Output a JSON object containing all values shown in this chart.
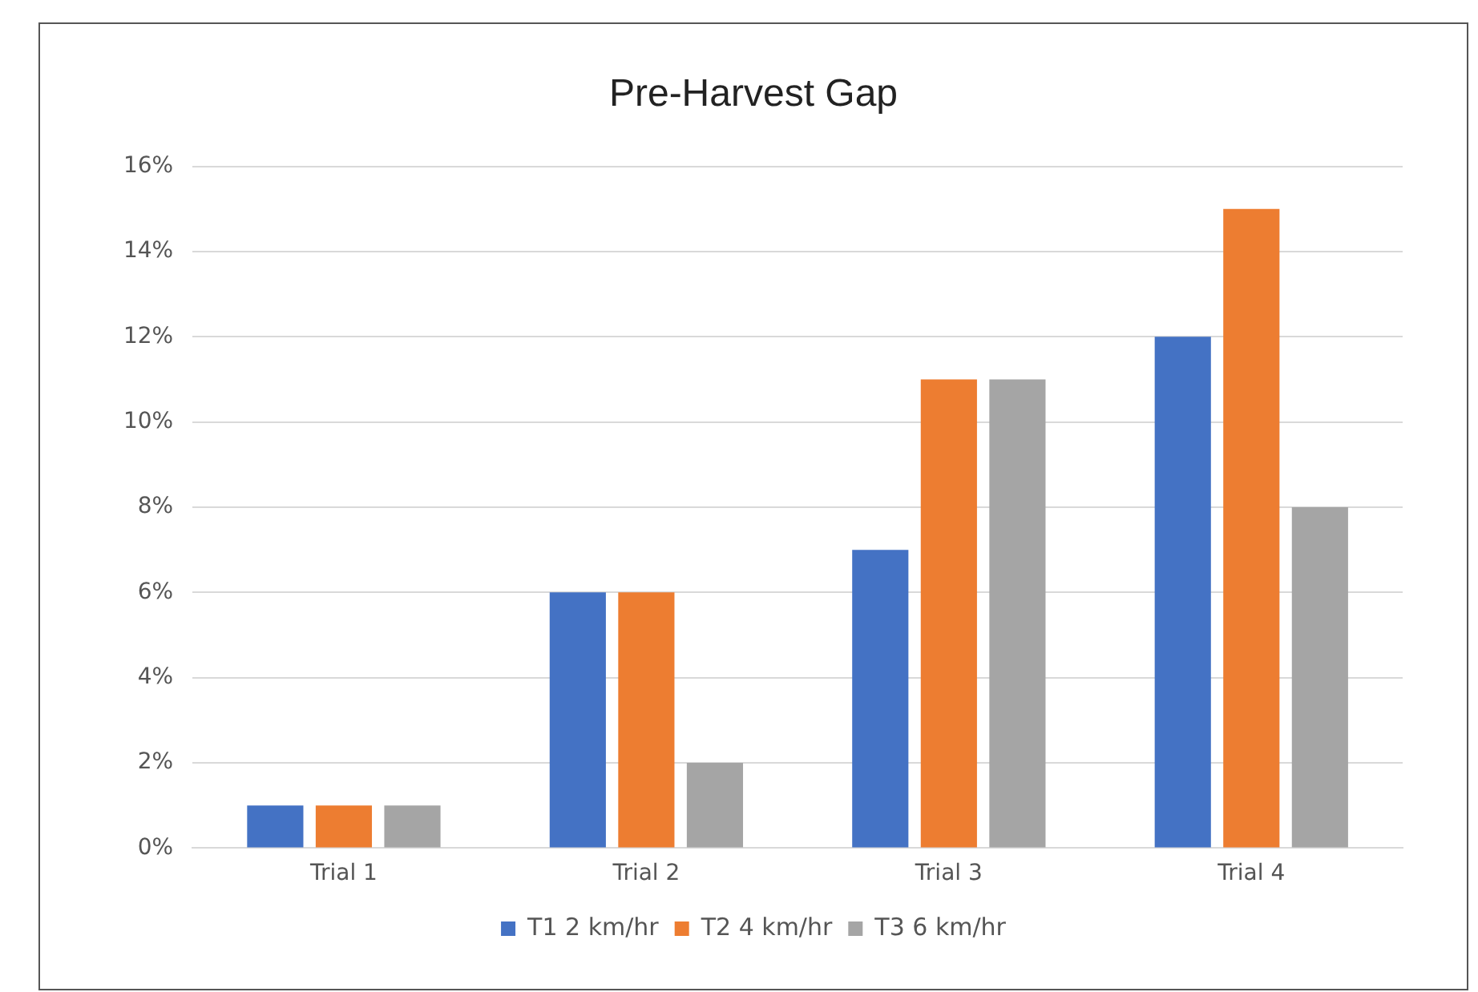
{
  "chart_data": {
    "type": "bar",
    "title": "Pre-Harvest Gap",
    "categories": [
      "Trial 1",
      "Trial 2",
      "Trial 3",
      "Trial 4"
    ],
    "series": [
      {
        "name": "T1 2 km/hr",
        "color": "#4472c4",
        "values": [
          1,
          6,
          7,
          12
        ]
      },
      {
        "name": "T2 4 km/hr",
        "color": "#ed7d31",
        "values": [
          1,
          6,
          11,
          15
        ]
      },
      {
        "name": "T3 6 km/hr",
        "color": "#a5a5a5",
        "values": [
          1,
          2,
          11,
          8
        ]
      }
    ],
    "ylim": [
      0,
      16
    ],
    "yticks": [
      {
        "value": 0,
        "label": "0%"
      },
      {
        "value": 2,
        "label": "2%"
      },
      {
        "value": 4,
        "label": "4%"
      },
      {
        "value": 6,
        "label": "6%"
      },
      {
        "value": 8,
        "label": "8%"
      },
      {
        "value": 10,
        "label": "10%"
      },
      {
        "value": 12,
        "label": "12%"
      },
      {
        "value": 14,
        "label": "14%"
      },
      {
        "value": 16,
        "label": "16%"
      }
    ],
    "grid": "y",
    "legend": "bottom"
  }
}
